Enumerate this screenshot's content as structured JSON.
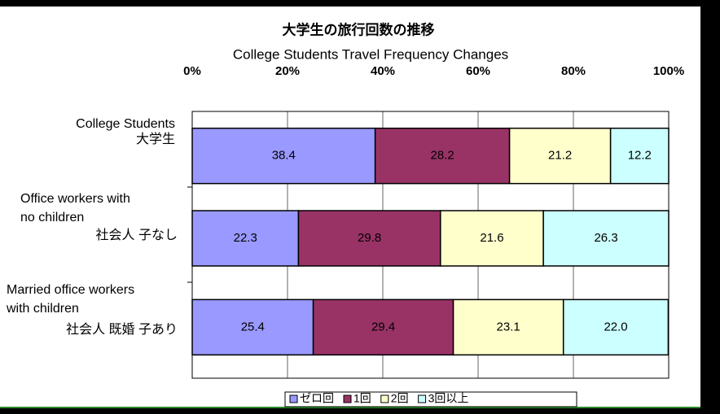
{
  "chart_data": {
    "type": "stacked-barh",
    "title": "大学生の旅行回数の推移",
    "subtitle": "College Students Travel Frequency  Changes",
    "categories": [
      [
        "College Students",
        "大学生"
      ],
      [
        "Office workers with",
        "no children",
        "社会人 子なし"
      ],
      [
        "Married office workers",
        "with children",
        "社会人 既婚 子あり"
      ]
    ],
    "series": [
      {
        "name": "ゼロ回",
        "color": "#9999ff",
        "values": [
          38.4,
          22.3,
          25.4
        ]
      },
      {
        "name": "1回",
        "color": "#993366",
        "values": [
          28.2,
          29.8,
          29.4
        ]
      },
      {
        "name": "2回",
        "color": "#ffffcc",
        "values": [
          21.2,
          21.6,
          23.1
        ]
      },
      {
        "name": "3回以上",
        "color": "#ccffff",
        "values": [
          12.2,
          26.3,
          22
        ],
        "value_labels": [
          "12.2",
          "26.3",
          "22.0"
        ]
      }
    ],
    "xlim": [
      0,
      100
    ],
    "xticks": [
      {
        "value": 0,
        "label": "0%"
      },
      {
        "value": 20,
        "label": "20%"
      },
      {
        "value": 40,
        "label": "40%"
      },
      {
        "value": 60,
        "label": "60%"
      },
      {
        "value": 80,
        "label": "80%"
      },
      {
        "value": 100,
        "label": "100%"
      }
    ],
    "grid": true,
    "legend": "bottom"
  }
}
